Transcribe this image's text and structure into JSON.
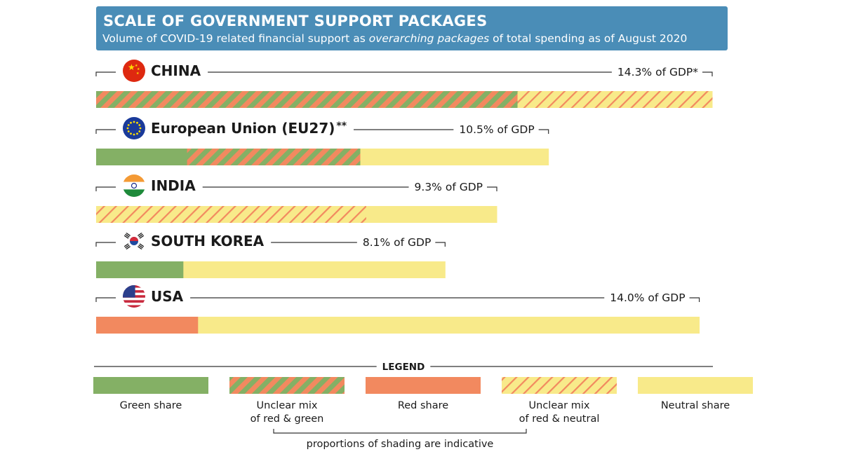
{
  "header": {
    "title": "SCALE OF GOVERNMENT SUPPORT PACKAGES",
    "subtitle_pre": "Volume of COVID-19 related financial support as ",
    "subtitle_em": "overarching packages",
    "subtitle_post": " of total spending as of August 2020"
  },
  "colors": {
    "green": "#84b065",
    "red": "#f2895f",
    "neutral": "#f8ea8a",
    "header_bg": "#4a8db7"
  },
  "chart_data": {
    "type": "bar",
    "orientation": "horizontal",
    "unit": "% of GDP",
    "countries": [
      {
        "name": "CHINA",
        "flag": "china-flag-icon",
        "value": 14.3,
        "label": "14.3% of GDP*",
        "segments": [
          {
            "kind": "mix_red_green",
            "share": 0.684
          },
          {
            "kind": "mix_red_neutral",
            "share": 0.316
          }
        ]
      },
      {
        "name": "European Union (EU27)",
        "suffix": "**",
        "flag": "eu-flag-icon",
        "value": 10.5,
        "label": "10.5% of GDP",
        "segments": [
          {
            "kind": "green",
            "share": 0.201
          },
          {
            "kind": "mix_red_green",
            "share": 0.383
          },
          {
            "kind": "neutral",
            "share": 0.416
          }
        ]
      },
      {
        "name": "INDIA",
        "flag": "india-flag-icon",
        "value": 9.3,
        "label": "9.3% of GDP",
        "segments": [
          {
            "kind": "mix_red_neutral",
            "share": 0.674
          },
          {
            "kind": "neutral",
            "share": 0.326
          }
        ]
      },
      {
        "name": "SOUTH KOREA",
        "flag": "south-korea-flag-icon",
        "value": 8.1,
        "label": "8.1% of GDP",
        "segments": [
          {
            "kind": "green",
            "share": 0.25
          },
          {
            "kind": "neutral",
            "share": 0.75
          }
        ]
      },
      {
        "name": "USA",
        "flag": "usa-flag-icon",
        "value": 14.0,
        "label": "14.0% of GDP",
        "segments": [
          {
            "kind": "red",
            "share": 0.169
          },
          {
            "kind": "neutral",
            "share": 0.831
          }
        ]
      }
    ],
    "legend": {
      "title": "LEGEND",
      "items": [
        {
          "kind": "green",
          "label": [
            "Green share"
          ]
        },
        {
          "kind": "mix_red_green",
          "label": [
            "Unclear mix",
            "of red & green"
          ]
        },
        {
          "kind": "red",
          "label": [
            "Red share"
          ]
        },
        {
          "kind": "mix_red_neutral",
          "label": [
            "Unclear mix",
            "of red & neutral"
          ]
        },
        {
          "kind": "neutral",
          "label": [
            "Neutral share"
          ]
        }
      ],
      "note": "proportions of shading are indicative"
    }
  }
}
